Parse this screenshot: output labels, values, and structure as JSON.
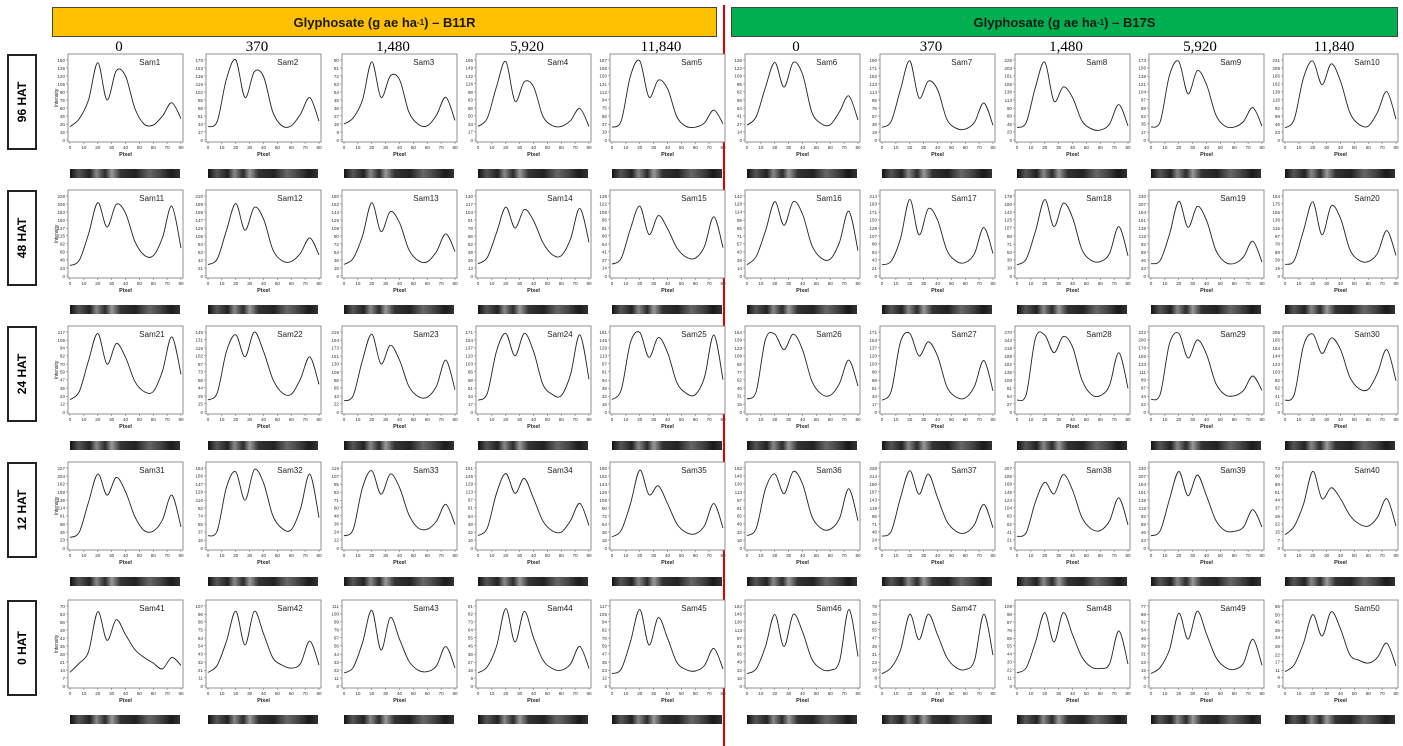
{
  "headers": {
    "resistant": {
      "pre": "Glyphosate (g ae ha",
      "sup": "-1",
      "post": ") – B11R",
      "color": "#ffc000"
    },
    "susceptible": {
      "pre": "Glyphosate (g ae ha",
      "sup": "-1",
      "post": ") – B17S",
      "color": "#00b050"
    }
  },
  "doses": [
    "0",
    "370",
    "1,480",
    "5,920",
    "11,840"
  ],
  "rows": [
    "96 HAT",
    "48 HAT",
    "24 HAT",
    "12 HAT",
    "0 HAT"
  ],
  "axis": {
    "xlabel": "Pixel",
    "ylabel": "Intensity",
    "xticks": [
      0,
      10,
      20,
      30,
      40,
      50,
      60,
      70,
      80
    ]
  },
  "divider_color": "#e00000",
  "chart_data": {
    "type": "line",
    "xlabel": "Pixel",
    "ylabel": "Intensity",
    "xlim": [
      0,
      80
    ],
    "panels": [
      {
        "name": "Sam1",
        "ylim": [
          0,
          150
        ],
        "y": [
          25,
          40,
          75,
          145,
          75,
          130,
          120,
          60,
          30,
          28,
          45,
          70,
          40
        ]
      },
      {
        "name": "Sam2",
        "ylim": [
          0,
          170
        ],
        "y": [
          28,
          40,
          130,
          170,
          90,
          145,
          135,
          60,
          30,
          30,
          55,
          90,
          40
        ]
      },
      {
        "name": "Sam3",
        "ylim": [
          0,
          90
        ],
        "y": [
          18,
          25,
          45,
          88,
          48,
          72,
          68,
          32,
          18,
          16,
          28,
          48,
          22
        ]
      },
      {
        "name": "Sam4",
        "ylim": [
          0,
          165
        ],
        "y": [
          28,
          45,
          110,
          162,
          80,
          120,
          110,
          50,
          30,
          28,
          40,
          65,
          28
        ]
      },
      {
        "name": "Sam5",
        "ylim": [
          0,
          187
        ],
        "y": [
          30,
          45,
          150,
          185,
          100,
          140,
          120,
          55,
          32,
          30,
          40,
          70,
          38
        ]
      },
      {
        "name": "Sam6",
        "ylim": [
          0,
          136
        ],
        "y": [
          25,
          40,
          90,
          132,
          90,
          132,
          112,
          48,
          28,
          26,
          48,
          75,
          34
        ]
      },
      {
        "name": "Sam7",
        "ylim": [
          0,
          190
        ],
        "y": [
          30,
          45,
          120,
          188,
          100,
          140,
          120,
          50,
          28,
          26,
          42,
          88,
          35
        ]
      },
      {
        "name": "Sam8",
        "ylim": [
          0,
          226
        ],
        "y": [
          35,
          50,
          150,
          220,
          110,
          150,
          120,
          55,
          32,
          28,
          45,
          100,
          40
        ]
      },
      {
        "name": "Sam9",
        "ylim": [
          0,
          173
        ],
        "y": [
          28,
          40,
          140,
          170,
          100,
          150,
          120,
          55,
          30,
          28,
          40,
          70,
          30
        ]
      },
      {
        "name": "Sam10",
        "ylim": [
          0,
          231
        ],
        "y": [
          35,
          60,
          180,
          228,
          160,
          220,
          170,
          80,
          45,
          40,
          80,
          140,
          60
        ]
      },
      {
        "name": "Sam11",
        "ylim": [
          0,
          229
        ],
        "y": [
          30,
          45,
          120,
          210,
          140,
          205,
          180,
          100,
          60,
          58,
          110,
          200,
          80
        ]
      },
      {
        "name": "Sam12",
        "ylim": [
          0,
          210
        ],
        "y": [
          30,
          45,
          120,
          190,
          120,
          180,
          150,
          70,
          40,
          38,
          60,
          100,
          55
        ]
      },
      {
        "name": "Sam13",
        "ylim": [
          0,
          180
        ],
        "y": [
          26,
          40,
          90,
          165,
          100,
          145,
          120,
          60,
          35,
          32,
          55,
          95,
          55
        ]
      },
      {
        "name": "Sam14",
        "ylim": [
          0,
          130
        ],
        "y": [
          20,
          30,
          70,
          112,
          78,
          108,
          90,
          55,
          35,
          33,
          60,
          110,
          55
        ]
      },
      {
        "name": "Sam15",
        "ylim": [
          0,
          135
        ],
        "y": [
          20,
          30,
          80,
          118,
          70,
          102,
          80,
          48,
          32,
          30,
          50,
          100,
          48
        ]
      },
      {
        "name": "Sam16",
        "ylim": [
          0,
          142
        ],
        "y": [
          20,
          35,
          80,
          132,
          90,
          132,
          110,
          55,
          32,
          30,
          60,
          115,
          45
        ]
      },
      {
        "name": "Sam17",
        "ylim": [
          0,
          214
        ],
        "y": [
          30,
          40,
          100,
          205,
          110,
          180,
          150,
          70,
          40,
          36,
          60,
          130,
          60
        ]
      },
      {
        "name": "Sam18",
        "ylim": [
          0,
          178
        ],
        "y": [
          25,
          38,
          100,
          170,
          110,
          162,
          130,
          60,
          35,
          32,
          50,
          110,
          45
        ]
      },
      {
        "name": "Sam19",
        "ylim": [
          0,
          230
        ],
        "y": [
          35,
          45,
          120,
          215,
          140,
          200,
          160,
          75,
          40,
          36,
          55,
          100,
          40
        ]
      },
      {
        "name": "Sam20",
        "ylim": [
          0,
          194
        ],
        "y": [
          28,
          38,
          110,
          180,
          100,
          170,
          140,
          65,
          38,
          35,
          55,
          110,
          50
        ]
      },
      {
        "name": "Sam21",
        "ylim": [
          0,
          117
        ],
        "y": [
          18,
          30,
          75,
          115,
          70,
          100,
          80,
          45,
          30,
          30,
          60,
          110,
          55
        ]
      },
      {
        "name": "Sam22",
        "ylim": [
          0,
          145
        ],
        "y": [
          22,
          35,
          110,
          140,
          100,
          145,
          110,
          60,
          35,
          32,
          60,
          100,
          50
        ]
      },
      {
        "name": "Sam23",
        "ylim": [
          0,
          216
        ],
        "y": [
          30,
          45,
          140,
          210,
          130,
          180,
          140,
          70,
          42,
          40,
          70,
          140,
          60
        ]
      },
      {
        "name": "Sam24",
        "ylim": [
          0,
          171
        ],
        "y": [
          25,
          40,
          130,
          168,
          120,
          168,
          130,
          60,
          38,
          35,
          80,
          165,
          70
        ]
      },
      {
        "name": "Sam25",
        "ylim": [
          0,
          161
        ],
        "y": [
          25,
          45,
          140,
          160,
          110,
          150,
          120,
          60,
          38,
          35,
          70,
          155,
          65
        ]
      },
      {
        "name": "Sam26",
        "ylim": [
          0,
          154
        ],
        "y": [
          25,
          40,
          140,
          150,
          120,
          150,
          120,
          60,
          35,
          32,
          55,
          100,
          50
        ]
      },
      {
        "name": "Sam27",
        "ylim": [
          0,
          171
        ],
        "y": [
          25,
          45,
          150,
          168,
          120,
          150,
          120,
          55,
          32,
          30,
          55,
          110,
          45
        ]
      },
      {
        "name": "Sam28",
        "ylim": [
          0,
          270
        ],
        "y": [
          40,
          60,
          250,
          260,
          200,
          255,
          220,
          110,
          60,
          55,
          90,
          200,
          80
        ]
      },
      {
        "name": "Sam29",
        "ylim": [
          0,
          222
        ],
        "y": [
          35,
          50,
          190,
          218,
          150,
          200,
          160,
          80,
          48,
          45,
          60,
          100,
          60
        ]
      },
      {
        "name": "Sam30",
        "ylim": [
          0,
          205
        ],
        "y": [
          30,
          45,
          170,
          200,
          150,
          190,
          160,
          90,
          60,
          58,
          100,
          160,
          80
        ]
      },
      {
        "name": "Sam31",
        "ylim": [
          0,
          227
        ],
        "y": [
          30,
          45,
          130,
          210,
          150,
          200,
          160,
          90,
          50,
          48,
          80,
          150,
          60
        ]
      },
      {
        "name": "Sam32",
        "ylim": [
          0,
          184
        ],
        "y": [
          28,
          40,
          140,
          175,
          110,
          180,
          150,
          75,
          45,
          42,
          90,
          170,
          70
        ]
      },
      {
        "name": "Sam33",
        "ylim": [
          0,
          119
        ],
        "y": [
          18,
          28,
          90,
          115,
          80,
          110,
          90,
          50,
          30,
          28,
          40,
          65,
          35
        ]
      },
      {
        "name": "Sam34",
        "ylim": [
          0,
          161
        ],
        "y": [
          25,
          40,
          110,
          150,
          110,
          140,
          100,
          55,
          35,
          32,
          55,
          90,
          45
        ]
      },
      {
        "name": "Sam35",
        "ylim": [
          0,
          180
        ],
        "y": [
          25,
          40,
          100,
          175,
          120,
          140,
          100,
          55,
          35,
          32,
          50,
          100,
          45
        ]
      },
      {
        "name": "Sam36",
        "ylim": [
          0,
          162
        ],
        "y": [
          25,
          40,
          120,
          150,
          110,
          155,
          130,
          65,
          40,
          38,
          60,
          120,
          55
        ]
      },
      {
        "name": "Sam37",
        "ylim": [
          0,
          238
        ],
        "y": [
          35,
          50,
          150,
          230,
          160,
          220,
          150,
          80,
          50,
          45,
          70,
          130,
          60
        ]
      },
      {
        "name": "Sam38",
        "ylim": [
          0,
          207
        ],
        "y": [
          30,
          40,
          120,
          170,
          140,
          190,
          150,
          80,
          50,
          45,
          70,
          130,
          60
        ]
      },
      {
        "name": "Sam39",
        "ylim": [
          0,
          230
        ],
        "y": [
          35,
          50,
          140,
          220,
          150,
          210,
          150,
          80,
          50,
          48,
          60,
          110,
          60
        ]
      },
      {
        "name": "Sam40",
        "ylim": [
          0,
          73
        ],
        "y": [
          12,
          20,
          40,
          70,
          45,
          55,
          45,
          30,
          22,
          20,
          28,
          45,
          20
        ]
      },
      {
        "name": "Sam41",
        "ylim": [
          0,
          70
        ],
        "y": [
          12,
          20,
          30,
          65,
          40,
          58,
          45,
          32,
          25,
          20,
          15,
          25,
          18
        ]
      },
      {
        "name": "Sam42",
        "ylim": [
          0,
          107
        ],
        "y": [
          18,
          28,
          60,
          100,
          55,
          100,
          70,
          38,
          28,
          24,
          30,
          60,
          28
        ]
      },
      {
        "name": "Sam43",
        "ylim": [
          0,
          111
        ],
        "y": [
          18,
          26,
          60,
          105,
          50,
          95,
          65,
          35,
          22,
          20,
          28,
          55,
          25
        ]
      },
      {
        "name": "Sam44",
        "ylim": [
          0,
          91
        ],
        "y": [
          15,
          22,
          45,
          88,
          50,
          85,
          55,
          30,
          20,
          18,
          25,
          45,
          20
        ]
      },
      {
        "name": "Sam45",
        "ylim": [
          0,
          117
        ],
        "y": [
          18,
          25,
          65,
          112,
          60,
          100,
          70,
          35,
          24,
          22,
          30,
          55,
          25
        ]
      },
      {
        "name": "Sam46",
        "ylim": [
          0,
          162
        ],
        "y": [
          25,
          35,
          80,
          145,
          80,
          145,
          110,
          55,
          35,
          32,
          50,
          155,
          60
        ]
      },
      {
        "name": "Sam47",
        "ylim": [
          0,
          78
        ],
        "y": [
          12,
          18,
          35,
          70,
          45,
          70,
          50,
          28,
          18,
          16,
          25,
          70,
          30
        ]
      },
      {
        "name": "Sam48",
        "ylim": [
          0,
          109
        ],
        "y": [
          18,
          25,
          60,
          100,
          60,
          100,
          70,
          40,
          26,
          24,
          30,
          75,
          30
        ]
      },
      {
        "name": "Sam49",
        "ylim": [
          0,
          77
        ],
        "y": [
          12,
          18,
          35,
          70,
          45,
          72,
          50,
          28,
          18,
          16,
          22,
          45,
          20
        ]
      },
      {
        "name": "Sam50",
        "ylim": [
          0,
          56
        ],
        "y": [
          10,
          15,
          30,
          50,
          35,
          52,
          40,
          22,
          18,
          16,
          20,
          30,
          14
        ]
      }
    ]
  }
}
